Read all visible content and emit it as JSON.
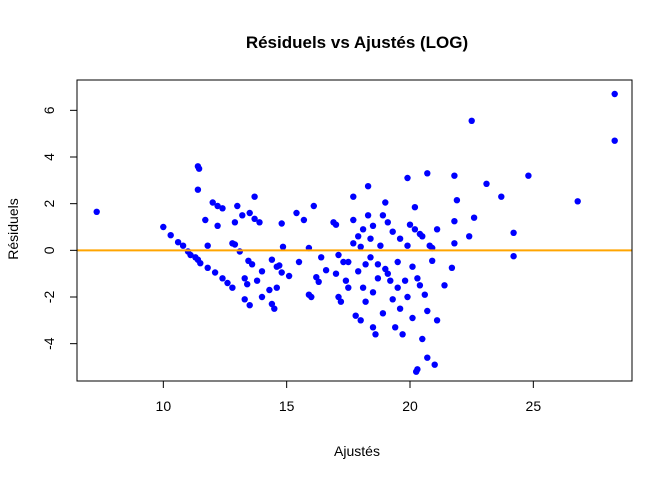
{
  "chart_data": {
    "type": "scatter",
    "title": "Résiduels vs Ajustés (LOG)",
    "xlabel": "Ajustés",
    "ylabel": "Résiduels",
    "xlim": [
      6.5,
      29
    ],
    "ylim": [
      -5.6,
      7.3
    ],
    "xticks": [
      10,
      15,
      20,
      25
    ],
    "yticks": [
      -4,
      -2,
      0,
      2,
      4,
      6
    ],
    "grid": false,
    "point_color": "#0000ff",
    "hline": {
      "y": 0,
      "color": "#ffa500"
    },
    "points": [
      [
        7.3,
        1.65
      ],
      [
        10.0,
        1.0
      ],
      [
        10.3,
        0.65
      ],
      [
        10.6,
        0.35
      ],
      [
        10.8,
        0.2
      ],
      [
        11.0,
        -0.05
      ],
      [
        11.1,
        -0.2
      ],
      [
        11.3,
        -0.3
      ],
      [
        11.4,
        -0.4
      ],
      [
        11.5,
        -0.55
      ],
      [
        11.4,
        3.6
      ],
      [
        11.45,
        3.5
      ],
      [
        11.4,
        2.6
      ],
      [
        11.7,
        1.3
      ],
      [
        11.8,
        0.2
      ],
      [
        11.8,
        -0.75
      ],
      [
        12.0,
        2.05
      ],
      [
        12.1,
        -0.95
      ],
      [
        12.2,
        1.05
      ],
      [
        12.2,
        1.9
      ],
      [
        12.4,
        1.8
      ],
      [
        12.4,
        -1.2
      ],
      [
        12.6,
        -1.4
      ],
      [
        12.8,
        -1.6
      ],
      [
        12.8,
        0.3
      ],
      [
        12.9,
        1.2
      ],
      [
        12.9,
        0.25
      ],
      [
        13.0,
        1.9
      ],
      [
        13.1,
        -0.05
      ],
      [
        13.2,
        1.5
      ],
      [
        13.3,
        -1.2
      ],
      [
        13.3,
        -2.1
      ],
      [
        13.4,
        -1.45
      ],
      [
        13.45,
        -0.45
      ],
      [
        13.5,
        -2.35
      ],
      [
        13.5,
        1.6
      ],
      [
        13.6,
        -0.6
      ],
      [
        13.7,
        1.35
      ],
      [
        13.7,
        2.3
      ],
      [
        13.8,
        -1.3
      ],
      [
        13.9,
        1.2
      ],
      [
        14.0,
        -0.9
      ],
      [
        14.0,
        -2.0
      ],
      [
        14.3,
        -1.7
      ],
      [
        14.4,
        -2.3
      ],
      [
        14.4,
        -0.4
      ],
      [
        14.5,
        -2.5
      ],
      [
        14.6,
        -0.7
      ],
      [
        14.6,
        -1.6
      ],
      [
        14.7,
        -0.65
      ],
      [
        14.8,
        1.15
      ],
      [
        14.8,
        -0.95
      ],
      [
        14.85,
        0.15
      ],
      [
        15.1,
        -1.1
      ],
      [
        15.4,
        1.6
      ],
      [
        15.5,
        -0.5
      ],
      [
        15.7,
        1.3
      ],
      [
        15.9,
        0.1
      ],
      [
        15.9,
        -1.9
      ],
      [
        16.0,
        -2.0
      ],
      [
        16.1,
        1.9
      ],
      [
        16.2,
        -1.15
      ],
      [
        16.3,
        -1.35
      ],
      [
        16.4,
        -0.3
      ],
      [
        16.6,
        -0.85
      ],
      [
        16.9,
        1.2
      ],
      [
        17.0,
        1.1
      ],
      [
        17.0,
        -1.0
      ],
      [
        17.1,
        -2.0
      ],
      [
        17.1,
        -0.2
      ],
      [
        17.2,
        -2.2
      ],
      [
        17.3,
        -0.5
      ],
      [
        17.4,
        -1.3
      ],
      [
        17.5,
        -1.6
      ],
      [
        17.5,
        -0.5
      ],
      [
        17.7,
        2.3
      ],
      [
        17.7,
        1.3
      ],
      [
        17.7,
        0.3
      ],
      [
        17.8,
        -2.8
      ],
      [
        17.9,
        -0.9
      ],
      [
        17.9,
        0.6
      ],
      [
        18.0,
        -3.0
      ],
      [
        18.0,
        0.15
      ],
      [
        18.1,
        -1.6
      ],
      [
        18.1,
        0.9
      ],
      [
        18.2,
        -2.2
      ],
      [
        18.2,
        -0.6
      ],
      [
        18.3,
        2.75
      ],
      [
        18.3,
        1.5
      ],
      [
        18.4,
        -0.3
      ],
      [
        18.4,
        0.5
      ],
      [
        18.5,
        -3.3
      ],
      [
        18.5,
        1.05
      ],
      [
        18.5,
        -1.8
      ],
      [
        18.6,
        -3.6
      ],
      [
        18.7,
        -1.2
      ],
      [
        18.7,
        -0.6
      ],
      [
        18.8,
        0.2
      ],
      [
        18.9,
        1.5
      ],
      [
        18.9,
        -2.7
      ],
      [
        19.0,
        -0.8
      ],
      [
        19.0,
        2.05
      ],
      [
        19.1,
        -1.0
      ],
      [
        19.1,
        1.2
      ],
      [
        19.2,
        -1.3
      ],
      [
        19.3,
        -2.1
      ],
      [
        19.3,
        0.8
      ],
      [
        19.4,
        -3.3
      ],
      [
        19.5,
        -1.6
      ],
      [
        19.5,
        -0.5
      ],
      [
        19.6,
        0.5
      ],
      [
        19.6,
        -2.5
      ],
      [
        19.7,
        -3.6
      ],
      [
        19.8,
        -1.3
      ],
      [
        19.9,
        0.2
      ],
      [
        19.9,
        -2.0
      ],
      [
        19.9,
        3.1
      ],
      [
        20.0,
        1.1
      ],
      [
        20.1,
        -2.9
      ],
      [
        20.1,
        -0.7
      ],
      [
        20.2,
        0.9
      ],
      [
        20.2,
        1.85
      ],
      [
        20.3,
        -1.2
      ],
      [
        20.3,
        -5.1
      ],
      [
        20.4,
        0.7
      ],
      [
        20.4,
        -1.5
      ],
      [
        20.5,
        0.6
      ],
      [
        20.5,
        -3.8
      ],
      [
        20.6,
        -1.9
      ],
      [
        20.7,
        3.3
      ],
      [
        20.7,
        -4.6
      ],
      [
        20.7,
        -2.6
      ],
      [
        20.8,
        0.2
      ],
      [
        20.9,
        0.1
      ],
      [
        20.9,
        -0.45
      ],
      [
        21.0,
        -4.9
      ],
      [
        21.1,
        0.9
      ],
      [
        21.1,
        -3.0
      ],
      [
        21.4,
        -1.5
      ],
      [
        21.7,
        -0.75
      ],
      [
        21.8,
        3.2
      ],
      [
        21.8,
        1.25
      ],
      [
        21.8,
        0.3
      ],
      [
        21.9,
        2.15
      ],
      [
        22.4,
        0.6
      ],
      [
        22.5,
        5.55
      ],
      [
        22.6,
        1.4
      ],
      [
        23.1,
        2.85
      ],
      [
        23.7,
        2.3
      ],
      [
        24.2,
        0.75
      ],
      [
        24.2,
        -0.25
      ],
      [
        24.8,
        3.2
      ],
      [
        26.8,
        2.1
      ],
      [
        28.3,
        6.7
      ],
      [
        28.3,
        4.7
      ],
      [
        20.25,
        -5.2
      ]
    ]
  }
}
